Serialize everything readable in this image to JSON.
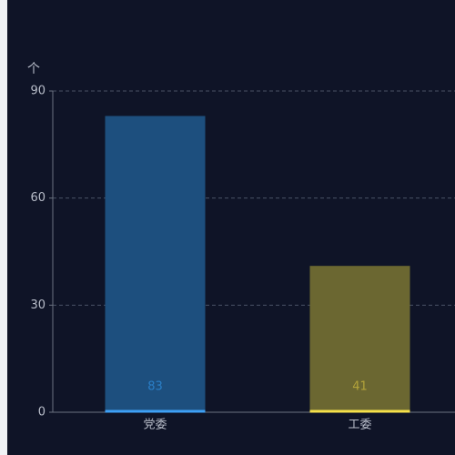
{
  "chart_data": {
    "type": "bar",
    "y_label": "个",
    "categories": [
      "党委",
      "工委"
    ],
    "values": [
      83,
      41
    ],
    "colors": [
      "#1d4f7e",
      "#6b6731"
    ],
    "edge_colors": [
      "#3ea0f5",
      "#f5e04a"
    ],
    "label_colors": [
      "#2a7fc8",
      "#b3a33a"
    ],
    "ylim": [
      0,
      90
    ],
    "yticks": [
      0,
      30,
      60,
      90
    ],
    "grid": true
  }
}
